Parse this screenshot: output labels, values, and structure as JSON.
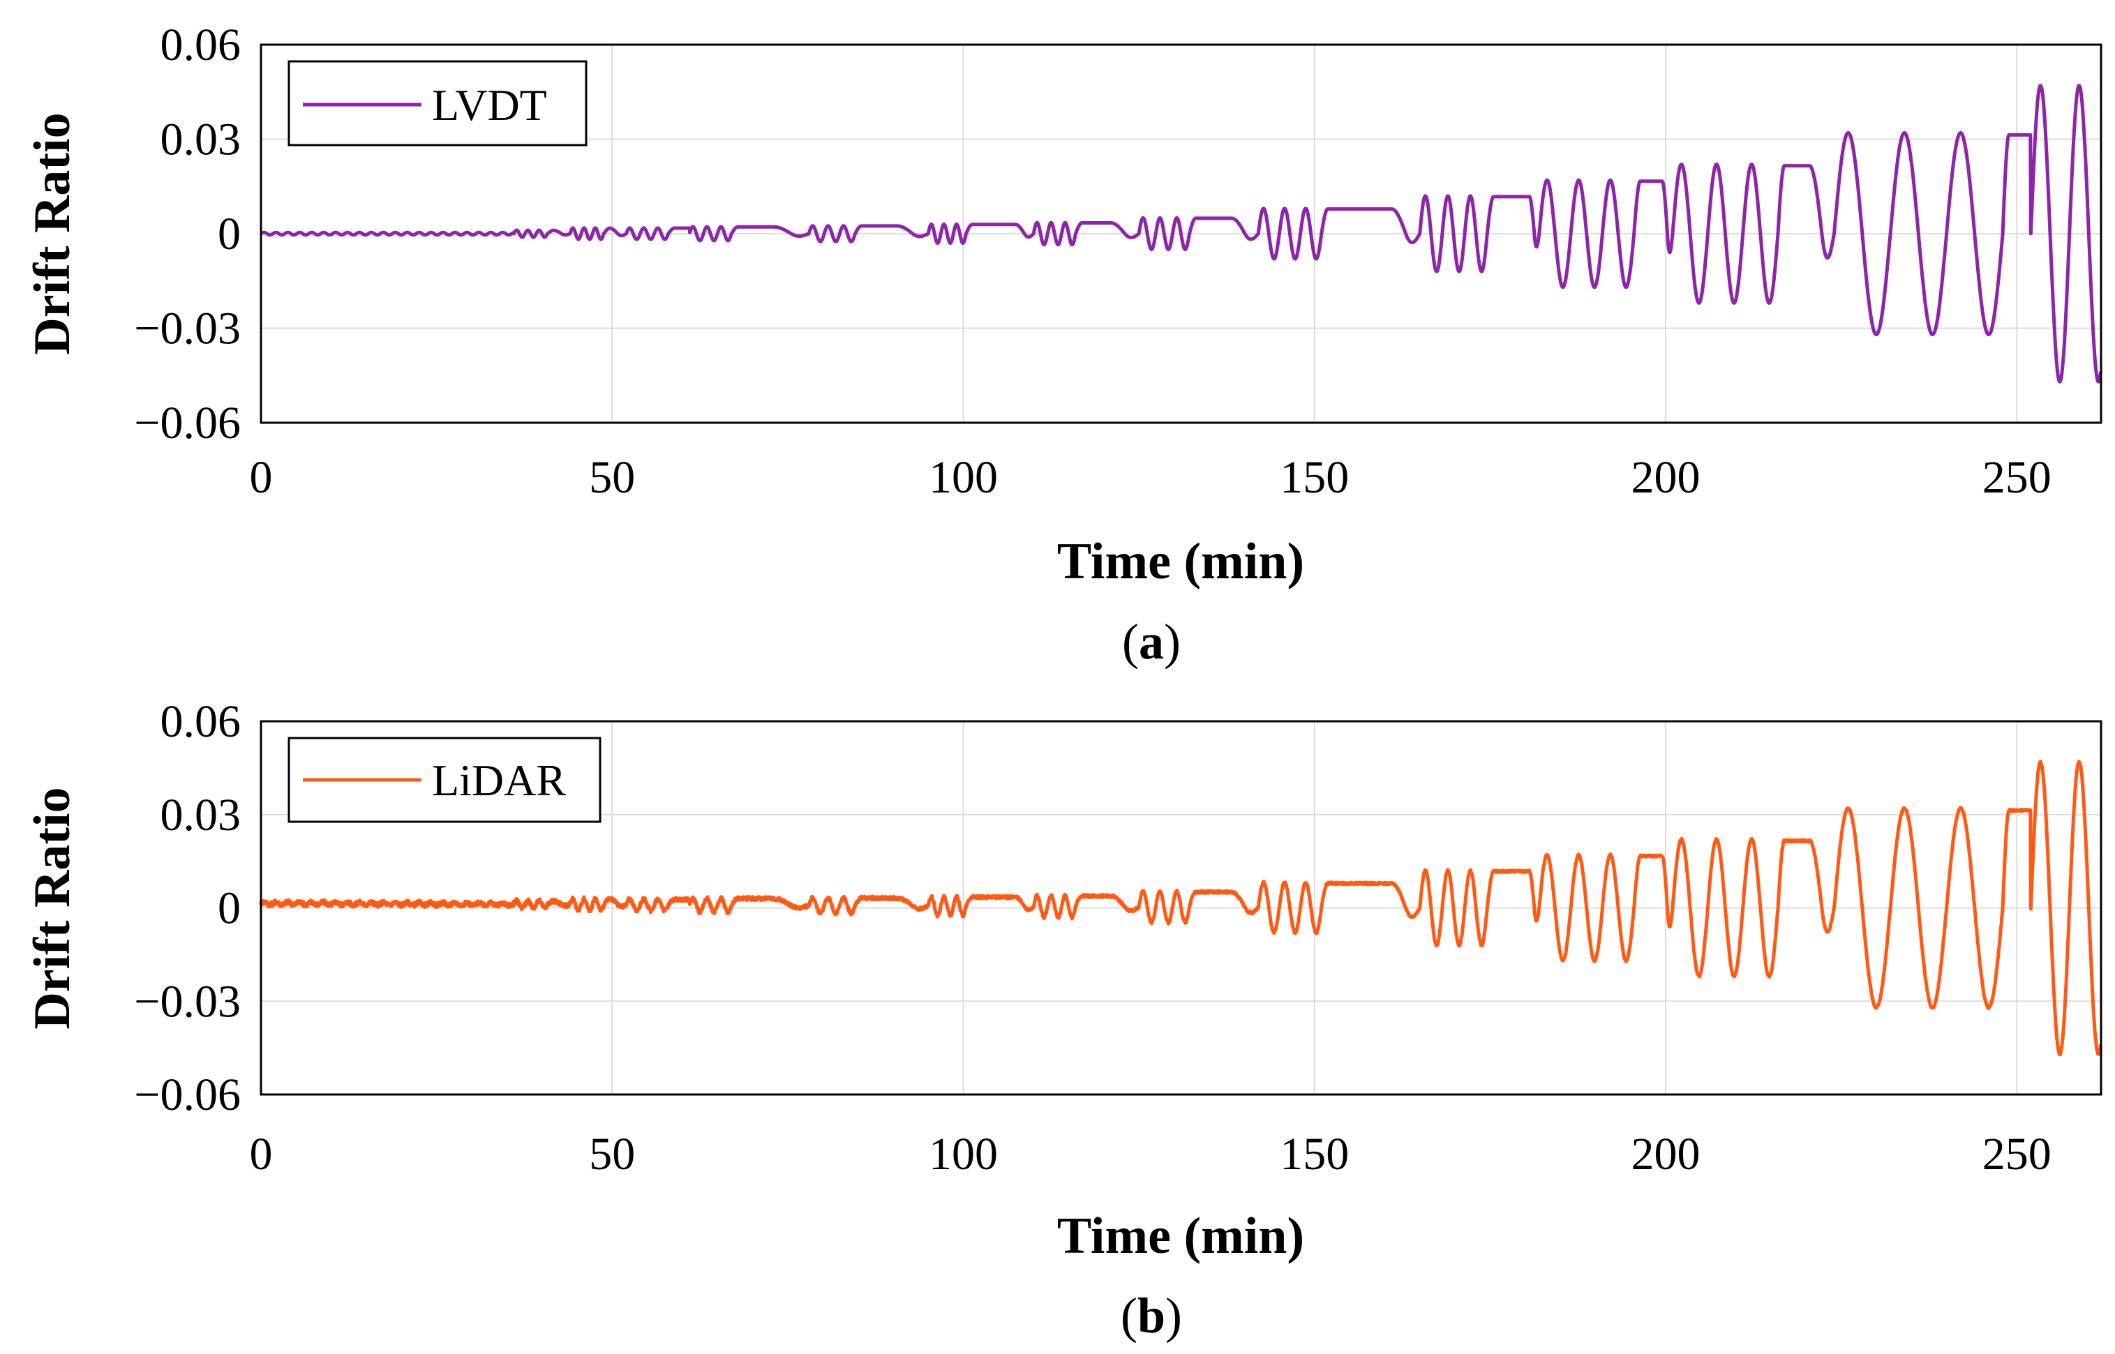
{
  "chart_data": [
    {
      "type": "line",
      "caption_letter": "a",
      "legend_entry": "LVDT",
      "color": "#8e24aa",
      "xlabel": "Time (min)",
      "ylabel": "Drift Ratio",
      "xlim": [
        0,
        262
      ],
      "ylim": [
        -0.06,
        0.06
      ],
      "xticks": [
        0,
        50,
        100,
        150,
        200,
        250
      ],
      "xtick_labels": [
        "0",
        "50",
        "100",
        "150",
        "200",
        "250"
      ],
      "yticks": [
        0.06,
        0.03,
        0,
        -0.03,
        -0.06
      ],
      "ytick_labels": [
        "0.06",
        "0.03",
        "0",
        "−0.03",
        "−0.06"
      ],
      "grid": true,
      "legend_position": "top-left",
      "offset": 0,
      "noise": 0
    },
    {
      "type": "line",
      "caption_letter": "b",
      "legend_entry": "LiDAR",
      "color": "#ff5a14",
      "xlabel": "Time (min)",
      "ylabel": "Drift Ratio",
      "xlim": [
        0,
        262
      ],
      "ylim": [
        -0.06,
        0.06
      ],
      "xticks": [
        0,
        50,
        100,
        150,
        200,
        250
      ],
      "xtick_labels": [
        "0",
        "50",
        "100",
        "150",
        "200",
        "250"
      ],
      "yticks": [
        0.06,
        0.03,
        0,
        -0.03,
        -0.06
      ],
      "ytick_labels": [
        "0.06",
        "0.03",
        "0",
        "−0.03",
        "−0.06"
      ],
      "grid": true,
      "legend_position": "top-left",
      "offset": 0.0015,
      "noise": 0.0008
    }
  ],
  "signal": {
    "description_units": "time in minutes, drift ratio unitless",
    "initial_level": 0,
    "initial_end": 36,
    "blocks": [
      {
        "start": 36,
        "amp": 0.0011,
        "cycles": 3,
        "period": 1.6,
        "hold": 0.8
      },
      {
        "start": 44,
        "amp": 0.0018,
        "cycles": 3,
        "period": 1.6,
        "hold": 0.8
      },
      {
        "start": 52,
        "amp": 0.0018,
        "cycles": 3,
        "period": 2.0,
        "hold": 3.0
      },
      {
        "start": 61,
        "amp": 0.0022,
        "cycles": 3,
        "period": 2.0,
        "hold": 6.0
      },
      {
        "start": 78,
        "amp": 0.0025,
        "cycles": 3,
        "period": 2.2,
        "hold": 6.0
      },
      {
        "start": 95,
        "amp": 0.003,
        "cycles": 3,
        "period": 1.8,
        "hold": 7.0
      },
      {
        "start": 110,
        "amp": 0.0035,
        "cycles": 3,
        "period": 2.0,
        "hold": 5.0
      },
      {
        "start": 125,
        "amp": 0.005,
        "cycles": 3,
        "period": 2.4,
        "hold": 6.0
      },
      {
        "start": 142,
        "amp": 0.008,
        "cycles": 3,
        "period": 3.0,
        "hold": 10.0
      },
      {
        "start": 165,
        "amp": 0.012,
        "cycles": 3,
        "period": 3.2,
        "hold": 6.0
      },
      {
        "start": 182,
        "amp": 0.017,
        "cycles": 3,
        "period": 4.5,
        "hold": 4.0
      },
      {
        "start": 201,
        "amp": 0.022,
        "cycles": 3,
        "period": 5.0,
        "hold": 4.5
      },
      {
        "start": 224,
        "amp": 0.032,
        "cycles": 3,
        "period": 8.0,
        "hold": 4.0
      },
      {
        "start": 252,
        "amp": 0.047,
        "cycles": 2,
        "period": 5.5,
        "hold": 0.0
      }
    ]
  }
}
